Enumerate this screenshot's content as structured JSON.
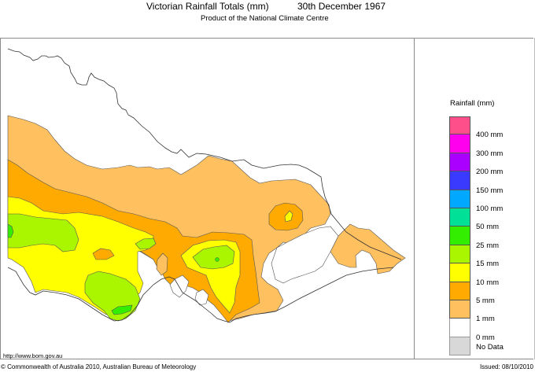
{
  "header": {
    "title": "Victorian Rainfall Totals (mm)",
    "date": "30th December 1967",
    "subtitle": "Product of the National Climate Centre"
  },
  "footer": {
    "url": "http://www.bom.gov.au",
    "copyright": "© Commonwealth of Australia 2010, Australian Bureau of Meteorology",
    "issued": "Issued: 08/10/2010"
  },
  "legend": {
    "title": "Rainfall (mm)",
    "boxes": [
      {
        "color": "#ff4f8b"
      },
      {
        "color": "#ff00ee"
      },
      {
        "color": "#aa00ff"
      },
      {
        "color": "#3a3aff"
      },
      {
        "color": "#00a8ff"
      },
      {
        "color": "#00e096"
      },
      {
        "color": "#33ee00"
      },
      {
        "color": "#aaf500"
      },
      {
        "color": "#ffff00"
      },
      {
        "color": "#ffaa00"
      },
      {
        "color": "#ffc060"
      },
      {
        "color": "#ffffff"
      },
      {
        "color": "#d8d8d8"
      }
    ],
    "labels": [
      "400 mm",
      "300 mm",
      "200 mm",
      "150 mm",
      "100 mm",
      "50 mm",
      "25 mm",
      "15 mm",
      "10 mm",
      "5 mm",
      "1 mm",
      "0 mm",
      "No Data"
    ]
  },
  "map": {
    "region": "Victoria",
    "colors": {
      "r1": "#ffc060",
      "r5": "#ffaa00",
      "r10": "#ffff00",
      "r15": "#aaf500",
      "r25": "#33ee00",
      "border": "#333333",
      "contour": "#555555"
    }
  }
}
